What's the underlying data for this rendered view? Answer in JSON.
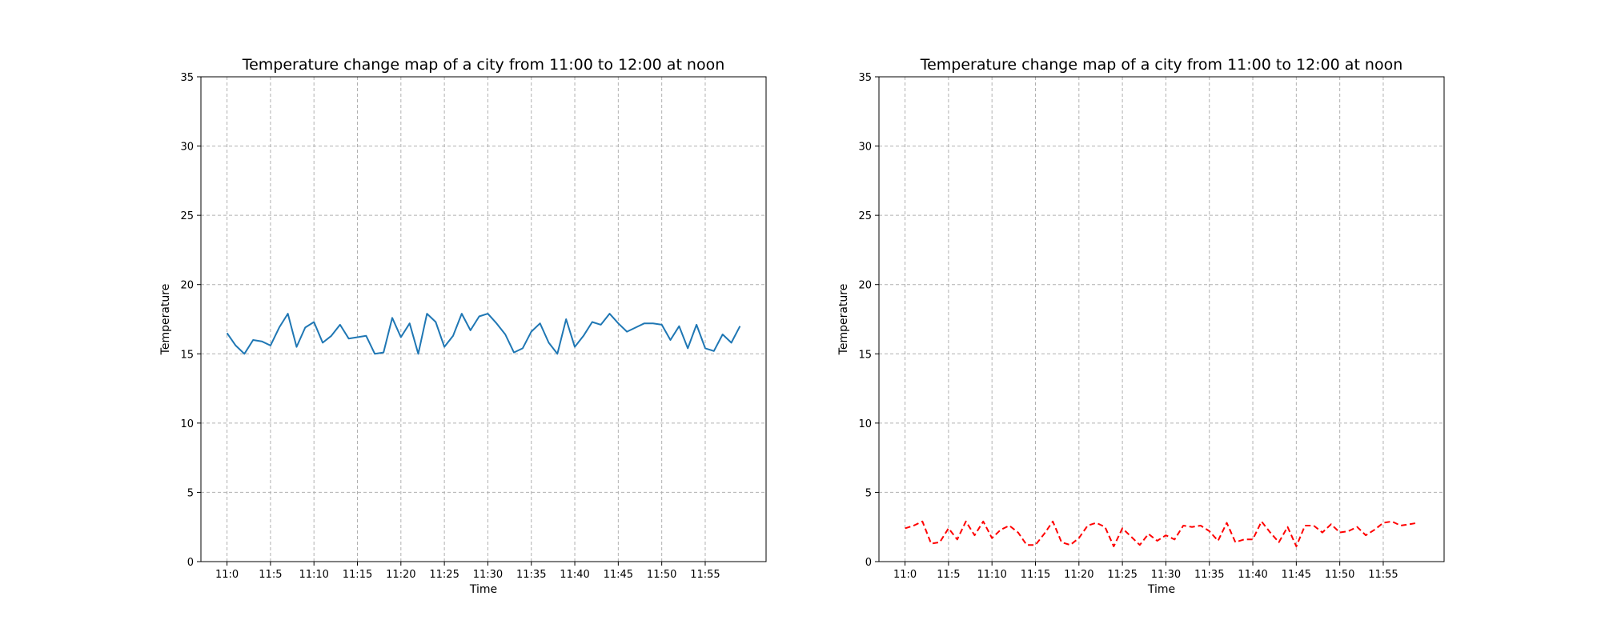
{
  "chart_data": [
    {
      "type": "line",
      "title": "Temperature change map of a city from 11:00 to 12:00 at noon",
      "xlabel": "Time",
      "ylabel": "Temperature",
      "ylim": [
        0,
        35
      ],
      "yticks": [
        0,
        5,
        10,
        15,
        20,
        25,
        30,
        35
      ],
      "xlim": [
        -3,
        62
      ],
      "xticks": [
        {
          "x": 0,
          "label": "11:0"
        },
        {
          "x": 5,
          "label": "11:5"
        },
        {
          "x": 10,
          "label": "11:10"
        },
        {
          "x": 15,
          "label": "11:15"
        },
        {
          "x": 20,
          "label": "11:20"
        },
        {
          "x": 25,
          "label": "11:25"
        },
        {
          "x": 30,
          "label": "11:30"
        },
        {
          "x": 35,
          "label": "11:35"
        },
        {
          "x": 40,
          "label": "11:40"
        },
        {
          "x": 45,
          "label": "11:45"
        },
        {
          "x": 50,
          "label": "11:50"
        },
        {
          "x": 55,
          "label": "11:55"
        }
      ],
      "grid": true,
      "series": [
        {
          "color": "#1f77b4",
          "line_style": "solid",
          "x": [
            0,
            1,
            2,
            3,
            4,
            5,
            6,
            7,
            8,
            9,
            10,
            11,
            12,
            13,
            14,
            15,
            16,
            17,
            18,
            19,
            20,
            21,
            22,
            23,
            24,
            25,
            26,
            27,
            28,
            29,
            30,
            31,
            32,
            33,
            34,
            35,
            36,
            37,
            38,
            39,
            40,
            41,
            42,
            43,
            44,
            45,
            46,
            47,
            48,
            49,
            50,
            51,
            52,
            53,
            54,
            55,
            56,
            57,
            58,
            59
          ],
          "values": [
            16.5,
            15.6,
            15.0,
            16.0,
            15.9,
            15.6,
            16.9,
            17.9,
            15.5,
            16.9,
            17.3,
            15.8,
            16.3,
            17.1,
            16.1,
            16.2,
            16.3,
            15.0,
            15.1,
            17.6,
            16.2,
            17.2,
            15.0,
            17.9,
            17.3,
            15.5,
            16.3,
            17.9,
            16.7,
            17.7,
            17.9,
            17.2,
            16.4,
            15.1,
            15.4,
            16.6,
            17.2,
            15.8,
            15.0,
            17.5,
            15.5,
            16.3,
            17.3,
            17.1,
            17.9,
            17.2,
            16.6,
            16.9,
            17.2,
            17.2,
            17.1,
            16.0,
            17.0,
            15.4,
            17.1,
            15.4,
            15.2,
            16.4,
            15.8,
            17.0
          ]
        }
      ]
    },
    {
      "type": "line",
      "title": "Temperature change map of a city from 11:00 to 12:00 at noon",
      "xlabel": "Time",
      "ylabel": "Temperature",
      "ylim": [
        0,
        35
      ],
      "yticks": [
        0,
        5,
        10,
        15,
        20,
        25,
        30,
        35
      ],
      "xlim": [
        -3,
        62
      ],
      "xticks": [
        {
          "x": 0,
          "label": "11:0"
        },
        {
          "x": 5,
          "label": "11:5"
        },
        {
          "x": 10,
          "label": "11:10"
        },
        {
          "x": 15,
          "label": "11:15"
        },
        {
          "x": 20,
          "label": "11:20"
        },
        {
          "x": 25,
          "label": "11:25"
        },
        {
          "x": 30,
          "label": "11:30"
        },
        {
          "x": 35,
          "label": "11:35"
        },
        {
          "x": 40,
          "label": "11:40"
        },
        {
          "x": 45,
          "label": "11:45"
        },
        {
          "x": 50,
          "label": "11:50"
        },
        {
          "x": 55,
          "label": "11:55"
        }
      ],
      "grid": true,
      "series": [
        {
          "color": "#ff0000",
          "line_style": "dashed",
          "x": [
            0,
            1,
            2,
            3,
            4,
            5,
            6,
            7,
            8,
            9,
            10,
            11,
            12,
            13,
            14,
            15,
            16,
            17,
            18,
            19,
            20,
            21,
            22,
            23,
            24,
            25,
            26,
            27,
            28,
            29,
            30,
            31,
            32,
            33,
            34,
            35,
            36,
            37,
            38,
            39,
            40,
            41,
            42,
            43,
            44,
            45,
            46,
            47,
            48,
            49,
            50,
            51,
            52,
            53,
            54,
            55,
            56,
            57,
            58,
            59
          ],
          "values": [
            2.4,
            2.6,
            2.9,
            1.3,
            1.4,
            2.4,
            1.6,
            2.9,
            1.9,
            2.9,
            1.7,
            2.3,
            2.6,
            2.1,
            1.2,
            1.2,
            2.0,
            2.9,
            1.4,
            1.2,
            1.7,
            2.6,
            2.8,
            2.5,
            1.1,
            2.4,
            1.8,
            1.2,
            2.0,
            1.5,
            1.9,
            1.6,
            2.6,
            2.5,
            2.6,
            2.2,
            1.5,
            2.8,
            1.4,
            1.6,
            1.6,
            2.9,
            2.1,
            1.4,
            2.5,
            1.1,
            2.6,
            2.6,
            2.1,
            2.7,
            2.1,
            2.2,
            2.5,
            1.9,
            2.3,
            2.8,
            2.9,
            2.6,
            2.7,
            2.8
          ]
        }
      ]
    }
  ]
}
